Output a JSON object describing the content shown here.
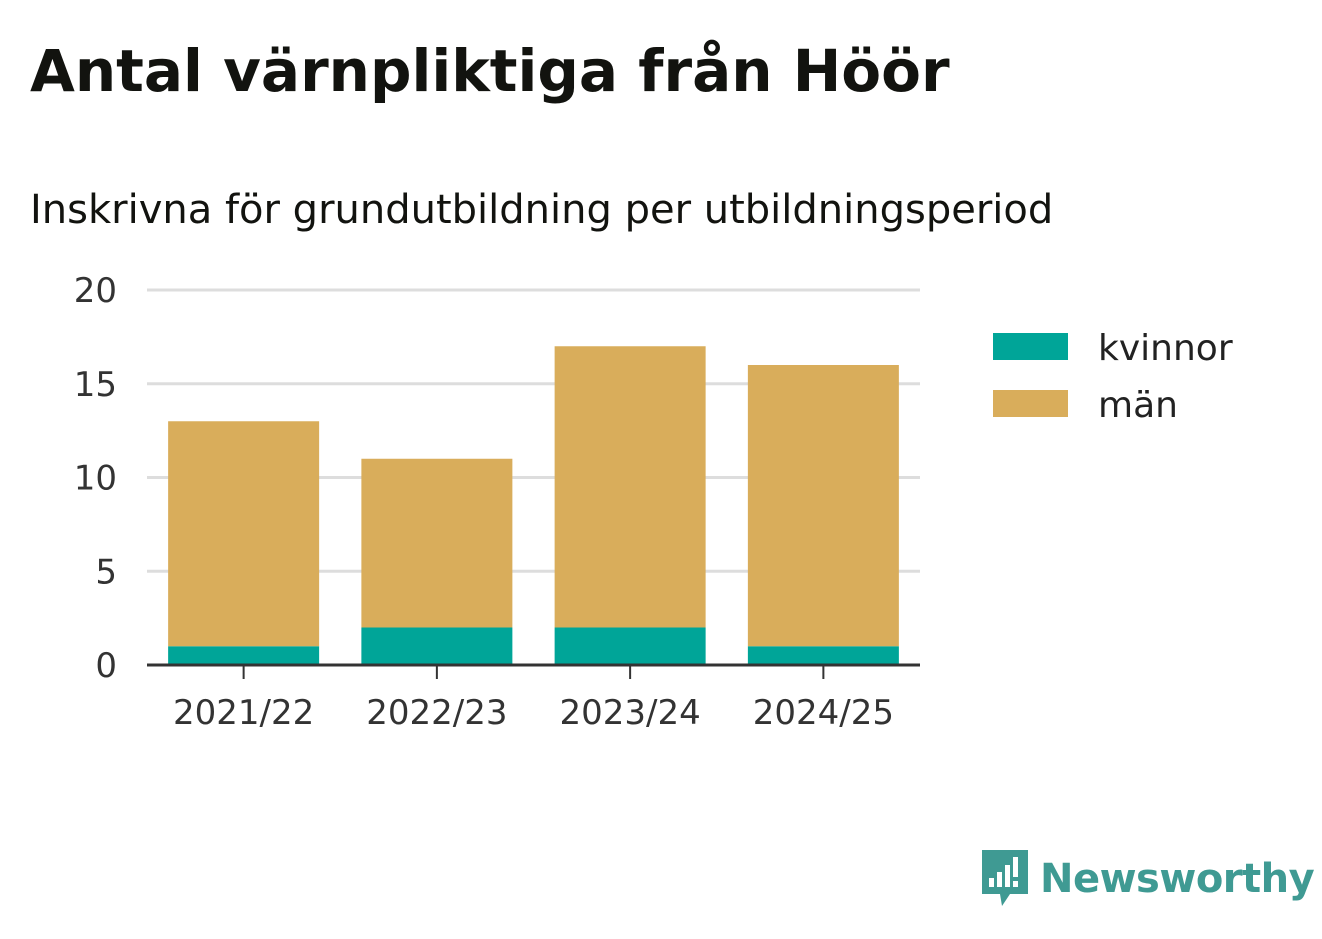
{
  "title": "Antal värnpliktiga från Höör",
  "subtitle": "Inskrivna för grundutbildning per utbildningsperiod",
  "brand": {
    "name": "Newsworthy",
    "icon": "newsworthy-logo-icon",
    "color": "#3f9a93"
  },
  "colors": {
    "kvinnor": "#00a598",
    "man": "#d9ad5b",
    "grid": "#dddddd",
    "axis": "#333333"
  },
  "chart_data": {
    "type": "bar",
    "stacked": true,
    "categories": [
      "2021/22",
      "2022/23",
      "2023/24",
      "2024/25"
    ],
    "series": [
      {
        "name": "kvinnor",
        "values": [
          1,
          2,
          2,
          1
        ],
        "color": "#00a598"
      },
      {
        "name": "män",
        "values": [
          12,
          9,
          15,
          15
        ],
        "color": "#d9ad5b"
      }
    ],
    "title": "Antal värnpliktiga från Höör",
    "subtitle": "Inskrivna för grundutbildning per utbildningsperiod",
    "xlabel": "",
    "ylabel": "",
    "ylim": [
      0,
      20
    ],
    "yticks": [
      0,
      5,
      10,
      15,
      20
    ],
    "grid": true,
    "legend_position": "right"
  }
}
